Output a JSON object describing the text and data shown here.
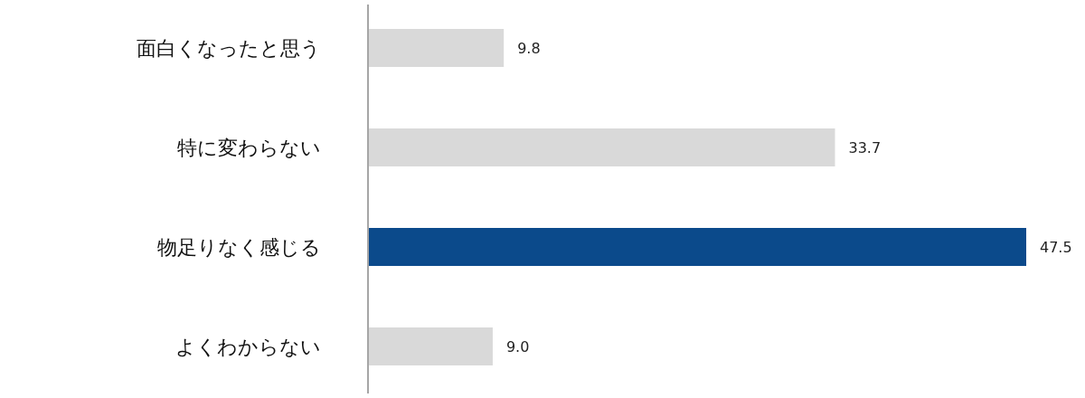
{
  "chart_data": {
    "type": "bar",
    "orientation": "horizontal",
    "categories": [
      "面白くなったと思う",
      "特に変わらない",
      "物足りなく感じる",
      "よくわからない"
    ],
    "values": [
      9.8,
      33.7,
      47.5,
      9.0
    ],
    "colors": [
      "#d9d9d9",
      "#d9d9d9",
      "#0b4a8b",
      "#d9d9d9"
    ],
    "value_labels": [
      "9.8",
      "33.7",
      "47.5",
      "9.0"
    ]
  }
}
